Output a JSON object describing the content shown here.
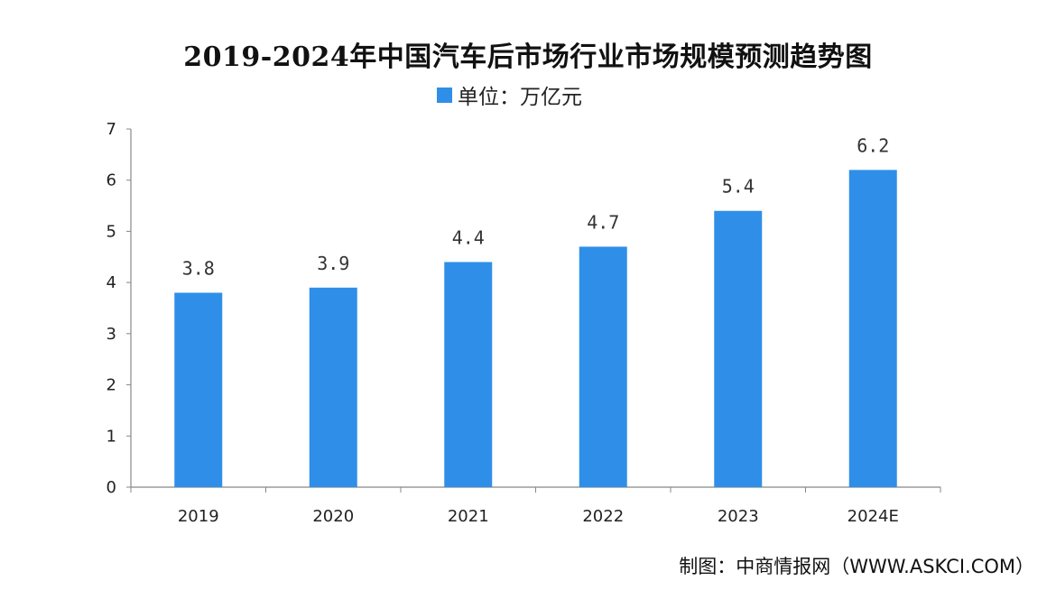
{
  "chart_data": {
    "type": "bar",
    "title": "2019-2024年中国汽车后市场行业市场规模预测趋势图",
    "legend": "单位：万亿元",
    "categories": [
      "2019",
      "2020",
      "2021",
      "2022",
      "2023",
      "2024E"
    ],
    "values": [
      3.8,
      3.9,
      4.4,
      4.7,
      5.4,
      6.2
    ],
    "data_labels": [
      "3.8",
      "3.9",
      "4.4",
      "4.7",
      "5.4",
      "6.2"
    ],
    "yticks": [
      "0",
      "1",
      "2",
      "3",
      "4",
      "5",
      "6",
      "7"
    ],
    "ylim": [
      0,
      7
    ],
    "bar_color": "#2f8fe8",
    "grid": false,
    "legend_position": "top-center",
    "source": "制图：中商情报网（WWW.ASKCI.COM）"
  }
}
